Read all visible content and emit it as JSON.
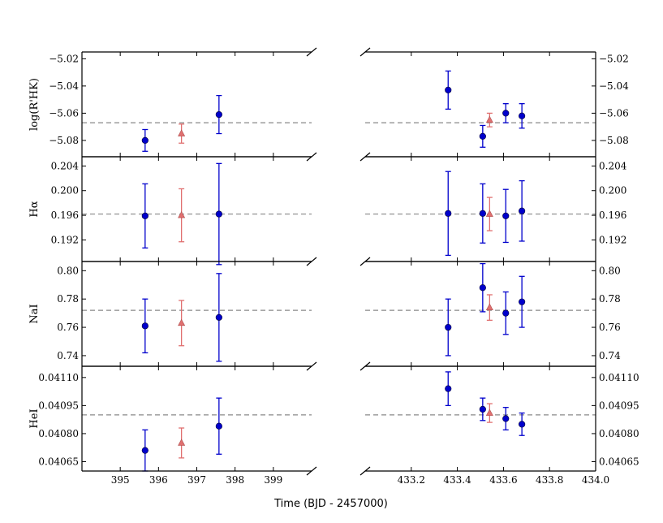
{
  "xlabel": "Time (BJD - 2457000)",
  "colors": {
    "primary": "#0000cc",
    "secondary": "#e07070",
    "reference": "#888888",
    "axis": "#000000"
  },
  "chart_data": {
    "type": "scatter",
    "panels": [
      {
        "ylabel": "log(R'HK)",
        "ylim": [
          -5.092,
          -5.015
        ],
        "yticks": [
          -5.08,
          -5.06,
          -5.04,
          -5.02
        ],
        "yticklabels": [
          "−5.08",
          "−5.06",
          "−5.04",
          "−5.02"
        ],
        "reference": -5.067,
        "left_primary": [
          {
            "x": 395.65,
            "y": -5.08,
            "err": 0.008
          },
          {
            "x": 397.58,
            "y": -5.061,
            "err": 0.014
          }
        ],
        "left_secondary": [
          {
            "x": 396.6,
            "y": -5.075,
            "err": 0.007
          }
        ],
        "right_primary": [
          {
            "x": 433.36,
            "y": -5.043,
            "err": 0.014
          },
          {
            "x": 433.51,
            "y": -5.077,
            "err": 0.008
          },
          {
            "x": 433.61,
            "y": -5.06,
            "err": 0.007
          },
          {
            "x": 433.68,
            "y": -5.062,
            "err": 0.009
          }
        ],
        "right_secondary": [
          {
            "x": 433.54,
            "y": -5.065,
            "err": 0.005
          }
        ]
      },
      {
        "ylabel": "Hα",
        "ylim": [
          0.1885,
          0.2055
        ],
        "yticks": [
          0.192,
          0.196,
          0.2,
          0.204
        ],
        "yticklabels": [
          "0.192",
          "0.196",
          "0.200",
          "0.204"
        ],
        "reference": 0.1962,
        "left_primary": [
          {
            "x": 395.65,
            "y": 0.1959,
            "err": 0.0052
          },
          {
            "x": 397.58,
            "y": 0.1962,
            "err": 0.0082
          }
        ],
        "left_secondary": [
          {
            "x": 396.6,
            "y": 0.196,
            "err": 0.0043
          }
        ],
        "right_primary": [
          {
            "x": 433.36,
            "y": 0.1963,
            "err": 0.0068
          },
          {
            "x": 433.51,
            "y": 0.1963,
            "err": 0.0048
          },
          {
            "x": 433.61,
            "y": 0.1959,
            "err": 0.0043
          },
          {
            "x": 433.68,
            "y": 0.1967,
            "err": 0.0049
          }
        ],
        "right_secondary": [
          {
            "x": 433.54,
            "y": 0.1962,
            "err": 0.0027
          }
        ]
      },
      {
        "ylabel": "NaI",
        "ylim": [
          0.7325,
          0.8065
        ],
        "yticks": [
          0.74,
          0.76,
          0.78,
          0.8
        ],
        "yticklabels": [
          "0.74",
          "0.76",
          "0.78",
          "0.80"
        ],
        "reference": 0.772,
        "left_primary": [
          {
            "x": 395.65,
            "y": 0.761,
            "err": 0.019
          },
          {
            "x": 397.58,
            "y": 0.767,
            "err": 0.031
          }
        ],
        "left_secondary": [
          {
            "x": 396.6,
            "y": 0.763,
            "err": 0.016
          }
        ],
        "right_primary": [
          {
            "x": 433.36,
            "y": 0.76,
            "err": 0.02
          },
          {
            "x": 433.51,
            "y": 0.788,
            "err": 0.017
          },
          {
            "x": 433.61,
            "y": 0.77,
            "err": 0.015
          },
          {
            "x": 433.68,
            "y": 0.778,
            "err": 0.018
          }
        ],
        "right_secondary": [
          {
            "x": 433.54,
            "y": 0.774,
            "err": 0.009
          }
        ]
      },
      {
        "ylabel": "HeI",
        "ylim": [
          0.0406,
          0.04116
        ],
        "yticks": [
          0.04065,
          0.0408,
          0.04095,
          0.0411
        ],
        "yticklabels": [
          "0.04065",
          "0.04080",
          "0.04095",
          "0.04110"
        ],
        "reference": 0.0409,
        "left_primary": [
          {
            "x": 395.65,
            "y": 0.04071,
            "err": 0.00011
          },
          {
            "x": 397.58,
            "y": 0.04084,
            "err": 0.00015
          }
        ],
        "left_secondary": [
          {
            "x": 396.6,
            "y": 0.04075,
            "err": 8e-05
          }
        ],
        "right_primary": [
          {
            "x": 433.36,
            "y": 0.04104,
            "err": 9e-05
          },
          {
            "x": 433.51,
            "y": 0.04093,
            "err": 6e-05
          },
          {
            "x": 433.61,
            "y": 0.04088,
            "err": 6e-05
          },
          {
            "x": 433.68,
            "y": 0.04085,
            "err": 6e-05
          }
        ],
        "right_secondary": [
          {
            "x": 433.54,
            "y": 0.04091,
            "err": 5e-05
          }
        ]
      }
    ],
    "xlim_left": [
      394.0,
      400.0
    ],
    "xticks_left": [
      395,
      396,
      397,
      398,
      399
    ],
    "xlim_right": [
      433.0,
      434.0
    ],
    "xticks_right": [
      433.2,
      433.4,
      433.6,
      433.8,
      434.0
    ],
    "xticklabels_right": [
      "433.2",
      "433.4",
      "433.6",
      "433.8",
      "434.0"
    ]
  }
}
